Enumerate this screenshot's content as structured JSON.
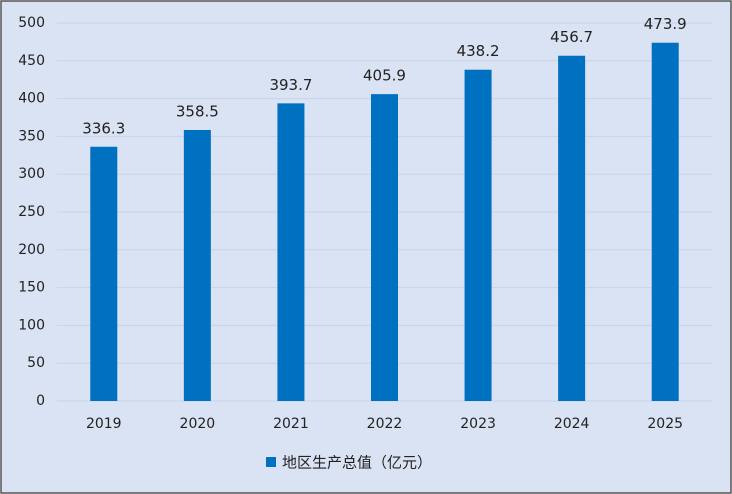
{
  "chart_data": {
    "type": "bar",
    "categories": [
      "2019",
      "2020",
      "2021",
      "2022",
      "2023",
      "2024",
      "2025"
    ],
    "series": [
      {
        "name": "地区生产总值（亿元）",
        "color": "#0070c0",
        "values": [
          336.3,
          358.5,
          393.7,
          405.9,
          438.2,
          456.7,
          473.9
        ]
      }
    ],
    "ylim": [
      0,
      500
    ],
    "yticks": [
      0,
      50,
      100,
      150,
      200,
      250,
      300,
      350,
      400,
      450,
      500
    ],
    "grid": true,
    "legend": "bottom"
  }
}
